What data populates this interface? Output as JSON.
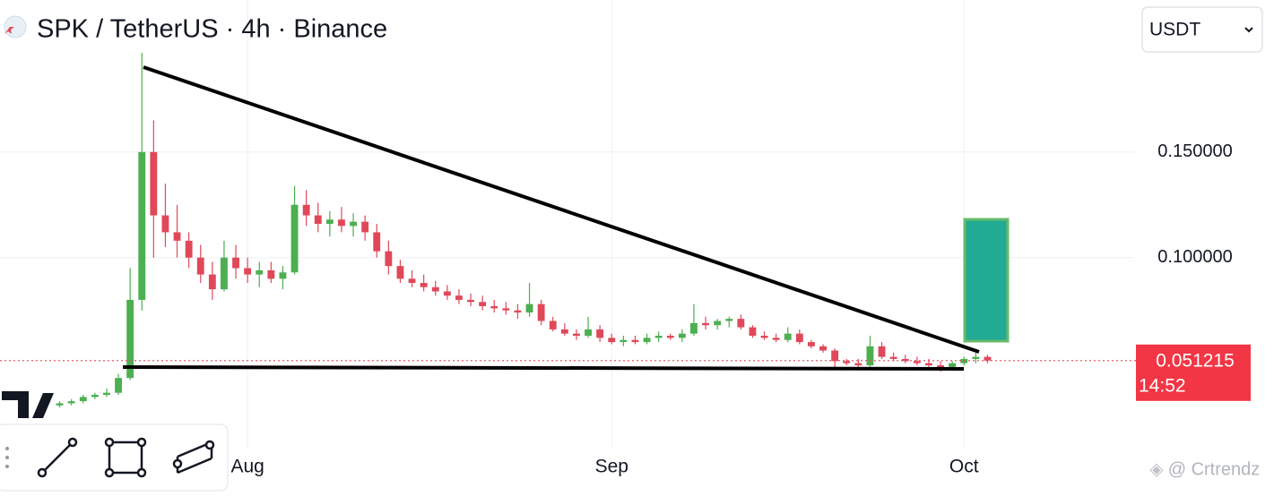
{
  "chart_data": {
    "type": "candlestick",
    "title": "SPK / TetherUS · 4h · Binance",
    "currency_select": "USDT",
    "watermark": "@ Crtrendz",
    "categories": [
      null,
      null,
      null,
      null,
      null,
      null,
      null,
      null,
      null,
      null,
      null,
      null,
      null,
      null,
      null,
      null,
      "Aug",
      null,
      null,
      null,
      null,
      null,
      null,
      null,
      null,
      null,
      null,
      null,
      null,
      null,
      null,
      null,
      null,
      null,
      null,
      null,
      null,
      null,
      null,
      null,
      null,
      null,
      null,
      null,
      null,
      null,
      null,
      "Sep",
      null,
      null,
      null,
      null,
      null,
      null,
      null,
      null,
      null,
      null,
      null,
      null,
      null,
      null,
      null,
      null,
      null,
      null,
      null,
      null,
      null,
      null,
      null,
      null,
      null,
      null,
      null,
      null,
      null,
      "Oct",
      null,
      null
    ],
    "open": [
      0.03,
      0.031,
      0.032,
      0.034,
      0.035,
      0.036,
      0.043,
      0.08,
      0.15,
      0.12,
      0.112,
      0.108,
      0.1,
      0.092,
      0.085,
      0.1,
      0.095,
      0.092,
      0.094,
      0.09,
      0.093,
      0.125,
      0.12,
      0.116,
      0.118,
      0.115,
      0.117,
      0.112,
      0.103,
      0.096,
      0.09,
      0.088,
      0.086,
      0.084,
      0.082,
      0.08,
      0.079,
      0.077,
      0.076,
      0.075,
      0.074,
      0.078,
      0.07,
      0.066,
      0.064,
      0.063,
      0.066,
      0.062,
      0.06,
      0.061,
      0.06,
      0.062,
      0.063,
      0.062,
      0.064,
      0.069,
      0.068,
      0.07,
      0.071,
      0.067,
      0.063,
      0.062,
      0.061,
      0.064,
      0.06,
      0.058,
      0.056,
      0.051,
      0.05,
      0.049,
      0.058,
      0.053,
      0.052,
      0.051,
      0.05,
      0.049,
      0.048,
      0.05,
      0.052,
      0.053
    ],
    "high": [
      0.032,
      0.033,
      0.035,
      0.036,
      0.038,
      0.045,
      0.095,
      0.197,
      0.165,
      0.135,
      0.125,
      0.112,
      0.106,
      0.098,
      0.108,
      0.106,
      0.1,
      0.098,
      0.098,
      0.096,
      0.134,
      0.132,
      0.126,
      0.122,
      0.124,
      0.121,
      0.12,
      0.116,
      0.108,
      0.099,
      0.094,
      0.092,
      0.089,
      0.087,
      0.085,
      0.083,
      0.082,
      0.08,
      0.079,
      0.078,
      0.088,
      0.08,
      0.072,
      0.069,
      0.066,
      0.072,
      0.068,
      0.064,
      0.063,
      0.063,
      0.064,
      0.065,
      0.064,
      0.066,
      0.078,
      0.072,
      0.071,
      0.072,
      0.073,
      0.068,
      0.065,
      0.064,
      0.067,
      0.066,
      0.061,
      0.059,
      0.057,
      0.052,
      0.052,
      0.063,
      0.06,
      0.055,
      0.054,
      0.053,
      0.052,
      0.051,
      0.051,
      0.053,
      0.055,
      0.054
    ],
    "low": [
      0.029,
      0.03,
      0.031,
      0.033,
      0.034,
      0.035,
      0.042,
      0.075,
      0.1,
      0.105,
      0.1,
      0.095,
      0.088,
      0.08,
      0.084,
      0.09,
      0.088,
      0.086,
      0.088,
      0.085,
      0.092,
      0.115,
      0.112,
      0.11,
      0.112,
      0.11,
      0.108,
      0.1,
      0.092,
      0.088,
      0.086,
      0.084,
      0.082,
      0.08,
      0.078,
      0.077,
      0.075,
      0.074,
      0.073,
      0.071,
      0.072,
      0.068,
      0.065,
      0.063,
      0.061,
      0.062,
      0.06,
      0.059,
      0.058,
      0.059,
      0.059,
      0.06,
      0.061,
      0.06,
      0.063,
      0.066,
      0.066,
      0.067,
      0.066,
      0.062,
      0.061,
      0.06,
      0.06,
      0.059,
      0.057,
      0.055,
      0.048,
      0.049,
      0.048,
      0.048,
      0.052,
      0.051,
      0.05,
      0.049,
      0.048,
      0.046,
      0.047,
      0.049,
      0.05,
      0.05
    ],
    "close": [
      0.031,
      0.032,
      0.034,
      0.035,
      0.036,
      0.043,
      0.08,
      0.15,
      0.12,
      0.112,
      0.108,
      0.1,
      0.092,
      0.085,
      0.1,
      0.095,
      0.092,
      0.094,
      0.09,
      0.093,
      0.125,
      0.12,
      0.116,
      0.118,
      0.115,
      0.117,
      0.112,
      0.103,
      0.096,
      0.09,
      0.088,
      0.086,
      0.084,
      0.082,
      0.08,
      0.079,
      0.077,
      0.076,
      0.075,
      0.074,
      0.078,
      0.07,
      0.066,
      0.064,
      0.063,
      0.066,
      0.062,
      0.06,
      0.061,
      0.06,
      0.062,
      0.063,
      0.062,
      0.064,
      0.069,
      0.068,
      0.07,
      0.071,
      0.067,
      0.063,
      0.062,
      0.061,
      0.064,
      0.06,
      0.058,
      0.056,
      0.051,
      0.05,
      0.049,
      0.058,
      0.053,
      0.052,
      0.051,
      0.05,
      0.049,
      0.048,
      0.05,
      0.052,
      0.053,
      0.051215
    ],
    "up_color": "#4caf50",
    "down_color": "#e0485a",
    "ylim": [
      0.01,
      0.222
    ],
    "yticks": [
      {
        "value": 0.1,
        "label": "0.100000"
      },
      {
        "value": 0.15,
        "label": "0.150000"
      }
    ],
    "grid": true,
    "last_price": {
      "value": 0.051215,
      "label": "0.051215"
    },
    "countdown": "14:52"
  }
}
